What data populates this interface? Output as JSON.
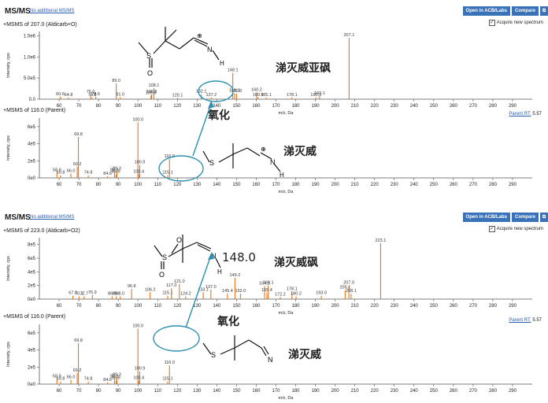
{
  "colors": {
    "peak": "#e8751a",
    "axis": "#555",
    "link": "#2a5db0",
    "button": "#3a72b8",
    "ellipse": "#2a8fb0",
    "arrow": "#2a8fb0"
  },
  "panels": [
    {
      "title": "MS/MS",
      "link": "No additional MS/MS",
      "buttons": [
        "Open in ACB/Labs",
        "Compare"
      ],
      "button_icon": "compare-icon",
      "acquire_label": "Acquire new spectrum"
    },
    {
      "title": "MS/MS",
      "link": "No additional MS/MS",
      "buttons": [
        "Open in ACB/Labs",
        "Compare"
      ],
      "button_icon": "compare-icon",
      "acquire_label": "Acquire new spectrum"
    }
  ],
  "annotations": {
    "top_upper": "涕灭威亚砜",
    "top_lower": "涕灭威",
    "top_arrow": "氧化",
    "bot_upper": "涕灭威砜",
    "bot_lower": "涕灭威",
    "bot_arrow": "氧化",
    "bot_mz": "148.0",
    "atoms": {
      "S": "S",
      "N": "N",
      "H": "H",
      "O": "O",
      "plus": "⊕"
    }
  },
  "chart_data": [
    {
      "type": "bar",
      "title": "+MSMS of 207.0 (Aldicarb+O)",
      "xlabel": "m/z, Da",
      "ylabel": "Intensity, cps",
      "xlim": [
        50,
        300
      ],
      "ylim": [
        0,
        1600000
      ],
      "yticks": [
        {
          "v": 0,
          "l": "0.0"
        },
        {
          "v": 500000,
          "l": "5.0e5"
        },
        {
          "v": 1000000,
          "l": "1.0e6"
        },
        {
          "v": 1500000,
          "l": "1.5e6"
        }
      ],
      "xticks": [
        60,
        70,
        80,
        90,
        100,
        110,
        120,
        130,
        140,
        150,
        160,
        170,
        180,
        190,
        200,
        210,
        220,
        230,
        240,
        250,
        260,
        270,
        280,
        290
      ],
      "peaks": [
        {
          "x": 60.6,
          "y": 60000,
          "label": "60.6"
        },
        {
          "x": 64.8,
          "y": 40000,
          "label": "64.8"
        },
        {
          "x": 76.0,
          "y": 110000,
          "label": "76.0"
        },
        {
          "x": 76.8,
          "y": 40000,
          "label": "76.8"
        },
        {
          "x": 78.6,
          "y": 60000,
          "label": "78.6"
        },
        {
          "x": 89.0,
          "y": 370000,
          "label": "89.0"
        },
        {
          "x": 91.0,
          "y": 50000,
          "label": "91.0"
        },
        {
          "x": 106.6,
          "y": 80000,
          "label": "106.6"
        },
        {
          "x": 108.1,
          "y": 260000,
          "label": "108.1"
        },
        {
          "x": 106.9,
          "y": 110000,
          "label": "106.9"
        },
        {
          "x": 120.1,
          "y": 30000,
          "label": "120.1"
        },
        {
          "x": 132.1,
          "y": 120000,
          "label": "132.1"
        },
        {
          "x": 137.2,
          "y": 40000,
          "label": "137.2"
        },
        {
          "x": 148.1,
          "y": 620000,
          "label": "148.1"
        },
        {
          "x": 150.0,
          "y": 130000,
          "label": "150.0"
        },
        {
          "x": 149.0,
          "y": 140000,
          "label": "149.0"
        },
        {
          "x": 160.2,
          "y": 160000,
          "label": "160.2"
        },
        {
          "x": 160.9,
          "y": 40000,
          "label": "160.9"
        },
        {
          "x": 165.1,
          "y": 40000,
          "label": "165.1"
        },
        {
          "x": 178.1,
          "y": 40000,
          "label": "178.1"
        },
        {
          "x": 190.3,
          "y": 40000,
          "label": "190.3"
        },
        {
          "x": 192.1,
          "y": 70000,
          "label": "192.1"
        },
        {
          "x": 207.1,
          "y": 1450000,
          "label": "207.1"
        }
      ]
    },
    {
      "type": "bar",
      "title": "+MSMS of 116.0 (Parent)",
      "xlabel": "m/z, Da",
      "ylabel": "Intensity, cps",
      "parent_rt_label": "Parent RT:",
      "parent_rt": "5.57",
      "xlim": [
        50,
        300
      ],
      "ylim": [
        0,
        700000
      ],
      "yticks": [
        {
          "v": 0,
          "l": "0e0"
        },
        {
          "v": 200000,
          "l": "2e5"
        },
        {
          "v": 400000,
          "l": "4e5"
        },
        {
          "v": 600000,
          "l": "6e5"
        }
      ],
      "xticks": [
        60,
        70,
        80,
        90,
        100,
        110,
        120,
        130,
        140,
        150,
        160,
        170,
        180,
        190,
        200,
        210,
        220,
        230,
        240,
        250,
        260,
        270,
        280,
        290
      ],
      "peaks": [
        {
          "x": 58.9,
          "y": 60000,
          "label": "58.9"
        },
        {
          "x": 60.8,
          "y": 30000,
          "label": "60.8"
        },
        {
          "x": 66.0,
          "y": 50000,
          "label": "66.0"
        },
        {
          "x": 69.8,
          "y": 480000,
          "label": "69.8"
        },
        {
          "x": 69.2,
          "y": 130000,
          "label": "69.2"
        },
        {
          "x": 74.8,
          "y": 30000,
          "label": "74.8"
        },
        {
          "x": 84.6,
          "y": 20000,
          "label": "84.6"
        },
        {
          "x": 88.1,
          "y": 60000,
          "label": "88.1"
        },
        {
          "x": 88.9,
          "y": 40000,
          "label": "88.9"
        },
        {
          "x": 89.3,
          "y": 80000,
          "label": "89.3"
        },
        {
          "x": 100.0,
          "y": 650000,
          "label": "100.0"
        },
        {
          "x": 100.9,
          "y": 150000,
          "label": "100.9"
        },
        {
          "x": 100.4,
          "y": 40000,
          "label": "100.4"
        },
        {
          "x": 116.0,
          "y": 220000,
          "label": "116.0"
        },
        {
          "x": 115.1,
          "y": 30000,
          "label": "115.1"
        }
      ]
    },
    {
      "type": "bar",
      "title": "+MSMS of 223.0 (Aldicarb+O2)",
      "xlabel": "m/z, Da",
      "ylabel": "Intensity, cps",
      "xlim": [
        50,
        300
      ],
      "ylim": [
        0,
        900000
      ],
      "yticks": [
        {
          "v": 0,
          "l": "0e0"
        },
        {
          "v": 200000,
          "l": "2e5"
        },
        {
          "v": 400000,
          "l": "4e5"
        },
        {
          "v": 600000,
          "l": "6e5"
        },
        {
          "v": 800000,
          "l": "8e5"
        }
      ],
      "xticks": [
        60,
        70,
        80,
        90,
        100,
        110,
        120,
        130,
        140,
        150,
        160,
        170,
        180,
        190,
        200,
        210,
        220,
        230,
        240,
        250,
        260,
        270,
        280,
        290
      ],
      "peaks": [
        {
          "x": 67.0,
          "y": 50000,
          "label": "67.0"
        },
        {
          "x": 70.1,
          "y": 40000,
          "label": "70.1"
        },
        {
          "x": 72.7,
          "y": 40000,
          "label": "72.7"
        },
        {
          "x": 76.9,
          "y": 60000,
          "label": "76.9"
        },
        {
          "x": 86.9,
          "y": 40000,
          "label": "86.9"
        },
        {
          "x": 89.0,
          "y": 40000,
          "label": "89.0"
        },
        {
          "x": 91.0,
          "y": 40000,
          "label": "91.0"
        },
        {
          "x": 96.8,
          "y": 150000,
          "label": "96.8"
        },
        {
          "x": 106.2,
          "y": 100000,
          "label": "106.2"
        },
        {
          "x": 115.1,
          "y": 50000,
          "label": "115.1"
        },
        {
          "x": 117.0,
          "y": 160000,
          "label": "117.0"
        },
        {
          "x": 121.0,
          "y": 220000,
          "label": "121.0"
        },
        {
          "x": 124.2,
          "y": 40000,
          "label": "124.2"
        },
        {
          "x": 133.1,
          "y": 100000,
          "label": "133.1"
        },
        {
          "x": 137.0,
          "y": 140000,
          "label": "137.0"
        },
        {
          "x": 145.4,
          "y": 80000,
          "label": "145.4"
        },
        {
          "x": 149.2,
          "y": 310000,
          "label": "149.2"
        },
        {
          "x": 152.0,
          "y": 80000,
          "label": "152.0"
        },
        {
          "x": 164.2,
          "y": 190000,
          "label": "164.2"
        },
        {
          "x": 166.1,
          "y": 200000,
          "label": "166.1"
        },
        {
          "x": 165.4,
          "y": 90000,
          "label": "165.4"
        },
        {
          "x": 172.2,
          "y": 30000,
          "label": "172.2"
        },
        {
          "x": 178.1,
          "y": 110000,
          "label": "178.1"
        },
        {
          "x": 180.2,
          "y": 40000,
          "label": "180.2"
        },
        {
          "x": 193.0,
          "y": 50000,
          "label": "193.0"
        },
        {
          "x": 205.1,
          "y": 130000,
          "label": "205.1"
        },
        {
          "x": 207.0,
          "y": 200000,
          "label": "207.0"
        },
        {
          "x": 208.1,
          "y": 80000,
          "label": "208.1"
        },
        {
          "x": 223.1,
          "y": 820000,
          "label": "223.1"
        }
      ]
    },
    {
      "type": "bar",
      "title": "+MSMS of 116.0 (Parent)",
      "xlabel": "m/z, Da",
      "ylabel": "Intensity, cps",
      "parent_rt_label": "Parent RT:",
      "parent_rt": "5.57",
      "xlim": [
        50,
        300
      ],
      "ylim": [
        0,
        700000
      ],
      "yticks": [
        {
          "v": 0,
          "l": "0e0"
        },
        {
          "v": 200000,
          "l": "2e5"
        },
        {
          "v": 400000,
          "l": "4e5"
        },
        {
          "v": 600000,
          "l": "6e5"
        }
      ],
      "xticks": [
        60,
        70,
        80,
        90,
        100,
        110,
        120,
        130,
        140,
        150,
        160,
        170,
        180,
        190,
        200,
        210,
        220,
        230,
        240,
        250,
        260,
        270,
        280,
        290
      ],
      "peaks": [
        {
          "x": 58.9,
          "y": 60000,
          "label": "58.9"
        },
        {
          "x": 60.8,
          "y": 30000,
          "label": "60.8"
        },
        {
          "x": 66.0,
          "y": 50000,
          "label": "66.0"
        },
        {
          "x": 69.8,
          "y": 480000,
          "label": "69.8"
        },
        {
          "x": 69.2,
          "y": 130000,
          "label": "69.2"
        },
        {
          "x": 74.8,
          "y": 30000,
          "label": "74.8"
        },
        {
          "x": 84.6,
          "y": 20000,
          "label": "84.6"
        },
        {
          "x": 88.1,
          "y": 60000,
          "label": "88.1"
        },
        {
          "x": 88.9,
          "y": 40000,
          "label": "88.9"
        },
        {
          "x": 89.3,
          "y": 80000,
          "label": "89.3"
        },
        {
          "x": 100.0,
          "y": 650000,
          "label": "100.0"
        },
        {
          "x": 100.9,
          "y": 150000,
          "label": "100.9"
        },
        {
          "x": 100.4,
          "y": 40000,
          "label": "100.4"
        },
        {
          "x": 116.0,
          "y": 220000,
          "label": "116.0"
        },
        {
          "x": 115.1,
          "y": 30000,
          "label": "115.1"
        }
      ]
    }
  ]
}
